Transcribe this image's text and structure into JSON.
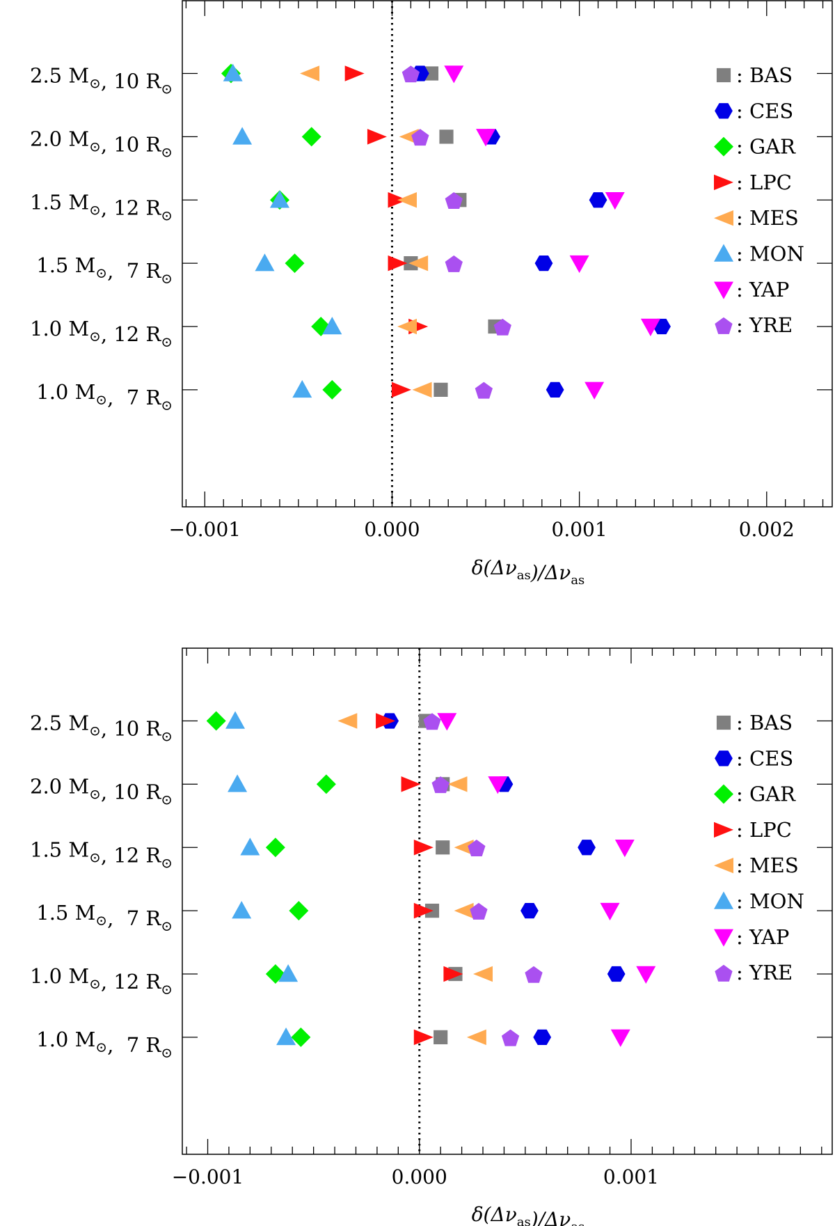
{
  "colors": {
    "BAS": "#7f7f7f",
    "CES": "#0000e6",
    "GAR": "#00f000",
    "LPC": "#ff1010",
    "MES": "#ffaa50",
    "MON": "#4aaaf0",
    "YAP": "#ff00ff",
    "YRE": "#aa50f0"
  },
  "chart_data": [
    {
      "type": "scatter",
      "xlabel": "δ(Δν_as)/Δν_as",
      "xlim": [
        -0.00112,
        0.00235
      ],
      "xticks": [
        -0.001,
        0.0,
        0.001,
        0.002
      ],
      "xtick_labels": [
        "−0.001",
        "0.000",
        "0.001",
        "0.002"
      ],
      "reference_line_x": 0.0,
      "categories": [
        "2.5 M⊙, 10 R⊙",
        "2.0 M⊙, 10 R⊙",
        "1.5 M⊙, 12 R⊙",
        "1.5 M⊙,  7 R⊙",
        "1.0 M⊙, 12 R⊙",
        "1.0 M⊙,  7 R⊙"
      ],
      "legend": [
        {
          "key": "BAS",
          "marker": "square",
          "label": ": BAS"
        },
        {
          "key": "CES",
          "marker": "hexagon",
          "label": ": CES"
        },
        {
          "key": "GAR",
          "marker": "diamond",
          "label": ": GAR"
        },
        {
          "key": "LPC",
          "marker": "triangle-right",
          "label": ": LPC"
        },
        {
          "key": "MES",
          "marker": "triangle-left",
          "label": ": MES"
        },
        {
          "key": "MON",
          "marker": "triangle-up",
          "label": ": MON"
        },
        {
          "key": "YAP",
          "marker": "triangle-down",
          "label": ": YAP"
        },
        {
          "key": "YRE",
          "marker": "pentagon",
          "label": ": YRE"
        }
      ],
      "series": [
        {
          "name": "BAS",
          "values": [
            0.00021,
            0.00029,
            0.00036,
            0.0001,
            0.00055,
            0.00026
          ]
        },
        {
          "name": "CES",
          "values": [
            0.00015,
            0.00053,
            0.0011,
            0.00081,
            0.00144,
            0.00087
          ]
        },
        {
          "name": "GAR",
          "values": [
            -0.00086,
            -0.00043,
            -0.0006,
            -0.00052,
            -0.00038,
            -0.00032
          ]
        },
        {
          "name": "LPC",
          "values": [
            -0.0002,
            -8e-05,
            3e-05,
            3e-05,
            0.00014,
            5e-05
          ]
        },
        {
          "name": "MES",
          "values": [
            -0.00044,
            9e-05,
            8e-05,
            0.00014,
            8e-05,
            0.00016
          ]
        },
        {
          "name": "MON",
          "values": [
            -0.00085,
            -0.0008,
            -0.0006,
            -0.00068,
            -0.00032,
            -0.00048
          ]
        },
        {
          "name": "YAP",
          "values": [
            0.00033,
            0.0005,
            0.00119,
            0.001,
            0.00138,
            0.00108
          ]
        },
        {
          "name": "YRE",
          "values": [
            0.0001,
            0.00015,
            0.00033,
            0.00033,
            0.00059,
            0.00049
          ]
        }
      ]
    },
    {
      "type": "scatter",
      "xlabel": "δ(Δν_as)/Δν_as",
      "xlim": [
        -0.00112,
        0.00195
      ],
      "xticks": [
        -0.001,
        0.0,
        0.001
      ],
      "xtick_labels": [
        "−0.001",
        "0.000",
        "0.001"
      ],
      "reference_line_x": 0.0,
      "categories": [
        "2.5 M⊙, 10 R⊙",
        "2.0 M⊙, 10 R⊙",
        "1.5 M⊙, 12 R⊙",
        "1.5 M⊙,  7 R⊙",
        "1.0 M⊙, 12 R⊙",
        "1.0 M⊙,  7 R⊙"
      ],
      "legend": [
        {
          "key": "BAS",
          "marker": "square",
          "label": ": BAS"
        },
        {
          "key": "CES",
          "marker": "hexagon",
          "label": ": CES"
        },
        {
          "key": "GAR",
          "marker": "diamond",
          "label": ": GAR"
        },
        {
          "key": "LPC",
          "marker": "triangle-right",
          "label": ": LPC"
        },
        {
          "key": "MES",
          "marker": "triangle-left",
          "label": ": MES"
        },
        {
          "key": "MON",
          "marker": "triangle-up",
          "label": ": MON"
        },
        {
          "key": "YAP",
          "marker": "triangle-down",
          "label": ": YAP"
        },
        {
          "key": "YRE",
          "marker": "pentagon",
          "label": ": YRE"
        }
      ],
      "series": [
        {
          "name": "BAS",
          "values": [
            3e-05,
            0.00011,
            0.00011,
            6e-05,
            0.00017,
            0.0001
          ]
        },
        {
          "name": "CES",
          "values": [
            -0.00014,
            0.0004,
            0.00079,
            0.00052,
            0.00093,
            0.00058
          ]
        },
        {
          "name": "GAR",
          "values": [
            -0.00096,
            -0.00044,
            -0.00068,
            -0.00057,
            -0.00068,
            -0.00056
          ]
        },
        {
          "name": "LPC",
          "values": [
            -0.00016,
            -4e-05,
            2e-05,
            2e-05,
            0.00016,
            2e-05
          ]
        },
        {
          "name": "MES",
          "values": [
            -0.00034,
            0.00018,
            0.00021,
            0.00021,
            0.0003,
            0.00027
          ]
        },
        {
          "name": "MON",
          "values": [
            -0.00087,
            -0.00086,
            -0.0008,
            -0.00084,
            -0.00062,
            -0.00063
          ]
        },
        {
          "name": "YAP",
          "values": [
            0.00013,
            0.00037,
            0.00097,
            0.0009,
            0.00107,
            0.00095
          ]
        },
        {
          "name": "YRE",
          "values": [
            6e-05,
            0.0001,
            0.00027,
            0.00028,
            0.00054,
            0.00043
          ]
        }
      ]
    }
  ]
}
